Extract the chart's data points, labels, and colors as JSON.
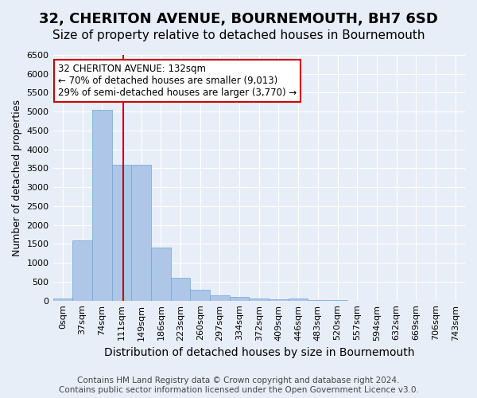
{
  "title": "32, CHERITON AVENUE, BOURNEMOUTH, BH7 6SD",
  "subtitle": "Size of property relative to detached houses in Bournemouth",
  "xlabel": "Distribution of detached houses by size in Bournemouth",
  "ylabel": "Number of detached properties",
  "footer_line1": "Contains HM Land Registry data © Crown copyright and database right 2024.",
  "footer_line2": "Contains public sector information licensed under the Open Government Licence v3.0.",
  "bin_labels": [
    "0sqm",
    "37sqm",
    "74sqm",
    "111sqm",
    "149sqm",
    "186sqm",
    "223sqm",
    "260sqm",
    "297sqm",
    "334sqm",
    "372sqm",
    "409sqm",
    "446sqm",
    "483sqm",
    "520sqm",
    "557sqm",
    "594sqm",
    "632sqm",
    "669sqm",
    "706sqm",
    "743sqm"
  ],
  "bar_values": [
    50,
    1600,
    5050,
    3600,
    3600,
    1400,
    600,
    280,
    150,
    100,
    50,
    30,
    50,
    10,
    5,
    3,
    2,
    1,
    0,
    0,
    0
  ],
  "bar_color": "#aec6e8",
  "bar_edge_color": "#6fa8d4",
  "annotation_title": "32 CHERITON AVENUE: 132sqm",
  "annotation_line2": "← 70% of detached houses are smaller (9,013)",
  "annotation_line3": "29% of semi-detached houses are larger (3,770) →",
  "vline_color": "#cc0000",
  "annotation_box_edgecolor": "#cc0000",
  "ylim": [
    0,
    6500
  ],
  "yticks": [
    0,
    500,
    1000,
    1500,
    2000,
    2500,
    3000,
    3500,
    4000,
    4500,
    5000,
    5500,
    6000,
    6500
  ],
  "bg_color": "#e8eef7",
  "plot_bg_color": "#e8eef7",
  "grid_color": "#ffffff",
  "title_fontsize": 13,
  "subtitle_fontsize": 11,
  "xlabel_fontsize": 10,
  "ylabel_fontsize": 9,
  "tick_fontsize": 8,
  "annotation_fontsize": 8.5,
  "footer_fontsize": 7.5
}
